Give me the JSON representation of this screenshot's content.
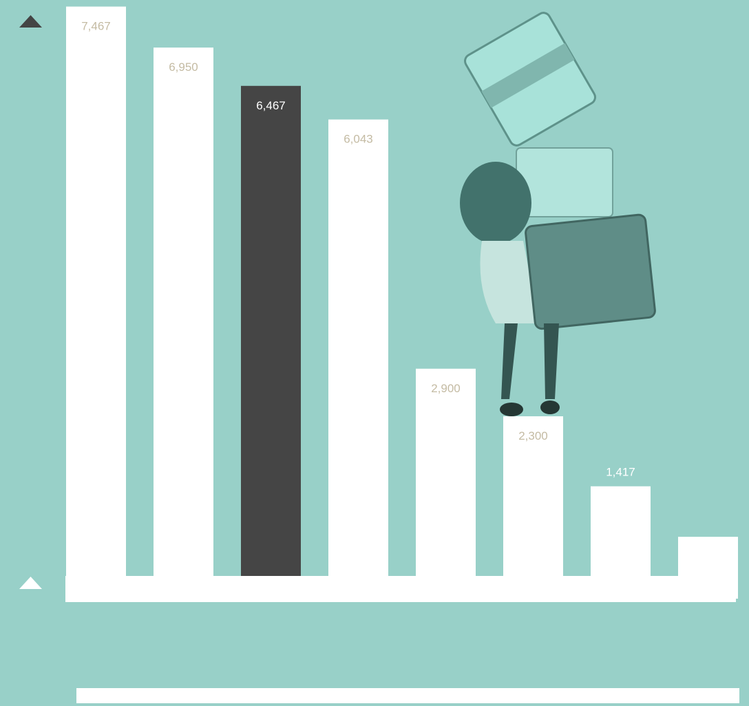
{
  "chart_data": {
    "type": "bar",
    "values": [
      7467,
      6950,
      6467,
      6043,
      2900,
      2300,
      1417,
      780
    ],
    "value_labels": [
      "7,467",
      "6,950",
      "6,467",
      "6,043",
      "2,900",
      "2,300",
      "1,417",
      null
    ],
    "colors": [
      "#ffffff",
      "#ffffff",
      "#454545",
      "#ffffff",
      "#ffffff",
      "#ffffff",
      "#ffffff",
      "#ffffff"
    ],
    "ylim": [
      0,
      7550
    ]
  }
}
